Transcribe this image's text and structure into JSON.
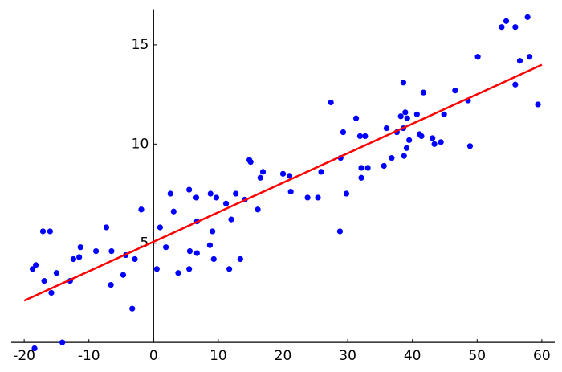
{
  "chart_data": {
    "type": "scatter",
    "xlim": [
      -22,
      62
    ],
    "ylim": [
      -0.4,
      16.8
    ],
    "xticks": [
      -20,
      -10,
      0,
      10,
      20,
      30,
      40,
      50,
      60
    ],
    "yticks": [
      5,
      10,
      15
    ],
    "series": [
      {
        "style": "points",
        "color": "#0000ff",
        "x": [
          -18.4,
          -14.1,
          -18.7,
          -18.2,
          -17.1,
          -16.0,
          -16.9,
          -15.8,
          -15.0,
          -12.9,
          -12.4,
          -11.5,
          -11.3,
          -8.9,
          -7.3,
          -6.5,
          -6.6,
          -4.7,
          -4.3,
          -3.3,
          -2.9,
          -1.9,
          0.5,
          1.0,
          1.9,
          2.6,
          3.1,
          3.8,
          5.5,
          5.6,
          5.5,
          6.6,
          6.7,
          6.7,
          8.8,
          9.1,
          8.7,
          9.3,
          9.7,
          11.2,
          11.7,
          12.0,
          12.7,
          13.4,
          14.1,
          14.8,
          15.0,
          16.1,
          16.5,
          16.9,
          20.0,
          21.0,
          21.2,
          23.8,
          25.4,
          25.9,
          27.4,
          28.8,
          28.9,
          29.3,
          29.8,
          31.3,
          31.9,
          32.1,
          32.1,
          32.7,
          33.1,
          35.6,
          36.0,
          36.8,
          37.6,
          38.2,
          38.6,
          38.6,
          38.7,
          38.9,
          39.2,
          39.1,
          39.5,
          40.7,
          41.1,
          41.4,
          41.7,
          43.1,
          43.4,
          44.4,
          44.9,
          46.6,
          48.6,
          48.9,
          50.1,
          53.8,
          54.5,
          55.9,
          55.9,
          56.6,
          57.8,
          58.1,
          59.4
        ],
        "values": [
          -0.3,
          0.0,
          3.7,
          3.9,
          5.6,
          5.6,
          3.1,
          2.5,
          3.5,
          3.1,
          4.2,
          4.3,
          4.8,
          4.6,
          5.8,
          4.6,
          2.9,
          3.4,
          4.4,
          1.7,
          4.2,
          6.7,
          3.7,
          5.8,
          4.8,
          7.5,
          6.6,
          3.5,
          7.7,
          4.6,
          3.7,
          7.3,
          6.1,
          4.5,
          7.5,
          5.6,
          4.9,
          4.2,
          7.3,
          7.0,
          3.7,
          6.2,
          7.5,
          4.2,
          7.2,
          9.2,
          9.1,
          6.7,
          8.3,
          8.6,
          8.5,
          8.4,
          7.6,
          7.3,
          7.3,
          8.6,
          12.1,
          5.6,
          9.3,
          10.6,
          7.5,
          11.3,
          10.4,
          8.8,
          8.3,
          10.4,
          8.8,
          8.9,
          10.8,
          9.3,
          10.6,
          11.4,
          13.1,
          10.8,
          9.4,
          11.6,
          11.3,
          9.8,
          10.2,
          11.5,
          10.5,
          10.4,
          12.6,
          10.3,
          10.0,
          10.1,
          11.5,
          12.7,
          12.2,
          9.9,
          14.4,
          15.9,
          16.2,
          15.9,
          13.0,
          14.2,
          16.4,
          14.4,
          12.0
        ]
      },
      {
        "style": "line",
        "color": "#ff0000",
        "x": [
          -20,
          60
        ],
        "values": [
          2.1,
          14.0
        ]
      }
    ]
  }
}
